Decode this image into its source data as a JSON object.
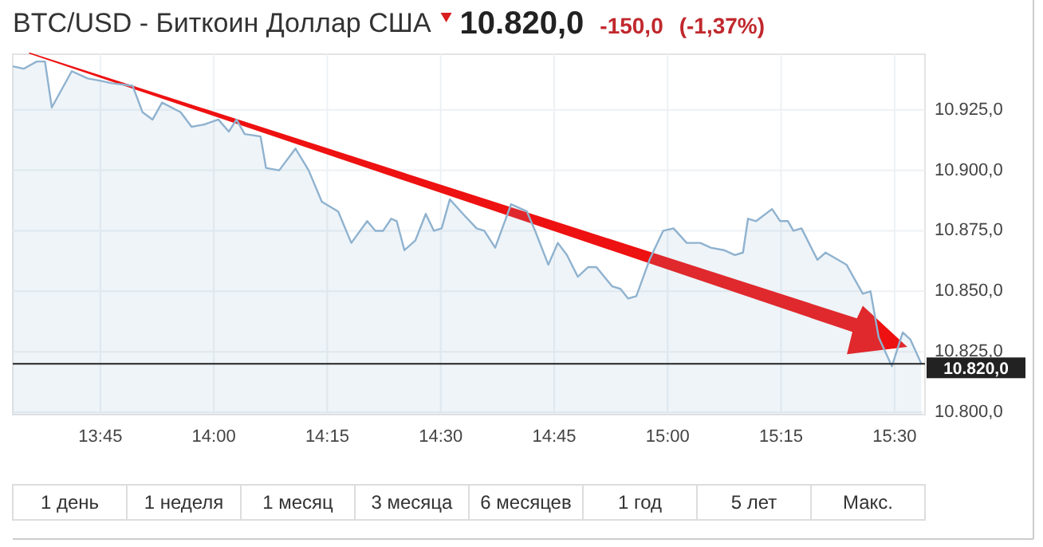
{
  "chart_data": {
    "type": "area",
    "title": "BTC/USD - Биткоин Доллар США",
    "annotations": [
      "10.820,0",
      "-150,0",
      "(-1,37%)",
      "1 день",
      "1 неделя",
      "1 месяц",
      "3 месяца",
      "6 месяцев",
      "1 год",
      "5 лет",
      "Макс."
    ],
    "x": [
      13.557,
      13.581,
      13.61,
      13.628,
      13.643,
      13.687,
      13.722,
      13.751,
      13.775,
      13.821,
      13.843,
      13.865,
      13.886,
      13.927,
      13.951,
      13.98,
      14.01,
      14.033,
      14.05,
      14.068,
      14.103,
      14.115,
      14.144,
      14.18,
      14.209,
      14.238,
      14.274,
      14.303,
      14.338,
      14.356,
      14.373,
      14.391,
      14.403,
      14.42,
      14.444,
      14.467,
      14.485,
      14.502,
      14.52,
      14.549,
      14.579,
      14.596,
      14.62,
      14.655,
      14.69,
      14.708,
      14.737,
      14.758,
      14.778,
      14.802,
      14.825,
      14.843,
      14.878,
      14.896,
      14.913,
      14.931,
      14.96,
      14.99,
      15.013,
      15.042,
      15.072,
      15.095,
      15.124,
      15.148,
      15.166,
      15.177,
      15.195,
      15.23,
      15.248,
      15.265,
      15.277,
      15.295,
      15.33,
      15.348,
      15.394,
      15.43,
      15.447,
      15.465,
      15.494,
      15.518,
      15.535,
      15.559
    ],
    "series": [
      {
        "color": "#8fb2cf",
        "values": [
          10943,
          10942,
          10945,
          10945,
          10926,
          10941,
          10938,
          10937,
          10936,
          10935,
          10924,
          10921,
          10928,
          10924,
          10918,
          10919,
          10921,
          10916,
          10921,
          10915,
          10914,
          10901,
          10900,
          10909,
          10900,
          10887,
          10883,
          10870,
          10879,
          10875,
          10875,
          10880,
          10879,
          10867,
          10871,
          10882,
          10875,
          10876,
          10888,
          10882,
          10876,
          10875,
          10868,
          10886,
          10883,
          10875,
          10861,
          10870,
          10865,
          10856,
          10860,
          10860,
          10852,
          10851,
          10847,
          10848,
          10863,
          10875,
          10876,
          10870,
          10870,
          10868,
          10867,
          10865,
          10866,
          10880,
          10879,
          10884,
          10879,
          10879,
          10875,
          10876,
          10863,
          10866,
          10861,
          10849,
          10850,
          10831,
          10819,
          10833,
          10830,
          10820
        ]
      }
    ],
    "xlim": [
      13.557,
      15.567
    ],
    "xticks": [
      {
        "value": 13.75,
        "label": "13:45"
      },
      {
        "value": 14,
        "label": "14:00"
      },
      {
        "value": 14.25,
        "label": "14:15"
      },
      {
        "value": 14.5,
        "label": "14:30"
      },
      {
        "value": 14.75,
        "label": "14:45"
      },
      {
        "value": 15,
        "label": "15:00"
      },
      {
        "value": 15.25,
        "label": "15:15"
      },
      {
        "value": 15.5,
        "label": "15:30"
      }
    ],
    "ylim": [
      10799,
      10948
    ],
    "yticks": [
      {
        "value": 10800,
        "label": "10.800,0"
      },
      {
        "value": 10825,
        "label": "10.825,0"
      },
      {
        "value": 10850,
        "label": "10.850,0"
      },
      {
        "value": 10875,
        "label": "10.875,0"
      },
      {
        "value": 10900,
        "label": "10.900,0"
      },
      {
        "value": 10925,
        "label": "10.925,0"
      }
    ],
    "ref_lines": [
      {
        "axis": "y",
        "value": 10820,
        "label": "10.820,0",
        "color": "#222222"
      }
    ],
    "grid": true
  }
}
